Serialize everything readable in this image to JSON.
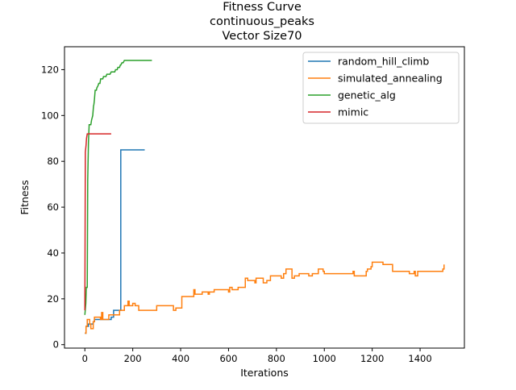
{
  "chart_data": {
    "type": "line",
    "title": [
      "Fitness Curve",
      "continuous_peaks",
      "Vector Size70"
    ],
    "xlabel": "Iterations",
    "ylabel": "Fitness",
    "xlim": [
      -85,
      1585
    ],
    "ylim": [
      -1.5,
      130
    ],
    "xticks": [
      0,
      200,
      400,
      600,
      800,
      1000,
      1200,
      1400
    ],
    "yticks": [
      0,
      20,
      40,
      60,
      80,
      100,
      120
    ],
    "grid": false,
    "legend": "upper right",
    "series": [
      {
        "name": "random_hill_climb",
        "color": "#1f77b4",
        "points": [
          [
            0,
            5
          ],
          [
            5,
            5
          ],
          [
            5,
            8
          ],
          [
            15,
            8
          ],
          [
            15,
            9
          ],
          [
            35,
            9
          ],
          [
            35,
            10
          ],
          [
            40,
            10
          ],
          [
            40,
            11
          ],
          [
            110,
            11
          ],
          [
            110,
            12
          ],
          [
            120,
            12
          ],
          [
            120,
            15
          ],
          [
            150,
            15
          ],
          [
            150,
            85
          ],
          [
            250,
            85
          ]
        ]
      },
      {
        "name": "simulated_annealing",
        "color": "#ff7f0e",
        "points": [
          [
            0,
            5
          ],
          [
            5,
            5
          ],
          [
            5,
            8
          ],
          [
            10,
            8
          ],
          [
            10,
            11
          ],
          [
            20,
            11
          ],
          [
            20,
            9
          ],
          [
            25,
            9
          ],
          [
            25,
            7
          ],
          [
            35,
            7
          ],
          [
            35,
            10
          ],
          [
            40,
            10
          ],
          [
            40,
            12
          ],
          [
            65,
            12
          ],
          [
            65,
            11
          ],
          [
            70,
            11
          ],
          [
            70,
            14
          ],
          [
            75,
            14
          ],
          [
            75,
            11
          ],
          [
            100,
            11
          ],
          [
            100,
            13
          ],
          [
            145,
            13
          ],
          [
            145,
            15
          ],
          [
            165,
            15
          ],
          [
            165,
            17
          ],
          [
            180,
            17
          ],
          [
            180,
            19
          ],
          [
            185,
            19
          ],
          [
            185,
            17
          ],
          [
            200,
            17
          ],
          [
            200,
            18
          ],
          [
            210,
            18
          ],
          [
            210,
            17
          ],
          [
            225,
            17
          ],
          [
            225,
            15
          ],
          [
            300,
            15
          ],
          [
            300,
            17
          ],
          [
            370,
            17
          ],
          [
            370,
            15
          ],
          [
            380,
            15
          ],
          [
            380,
            16
          ],
          [
            405,
            16
          ],
          [
            405,
            21
          ],
          [
            455,
            21
          ],
          [
            455,
            24
          ],
          [
            460,
            24
          ],
          [
            460,
            22
          ],
          [
            490,
            22
          ],
          [
            490,
            23
          ],
          [
            515,
            23
          ],
          [
            515,
            22
          ],
          [
            520,
            22
          ],
          [
            520,
            23
          ],
          [
            540,
            23
          ],
          [
            540,
            24
          ],
          [
            600,
            24
          ],
          [
            600,
            23
          ],
          [
            605,
            23
          ],
          [
            605,
            25
          ],
          [
            615,
            25
          ],
          [
            615,
            24
          ],
          [
            640,
            24
          ],
          [
            640,
            25
          ],
          [
            670,
            25
          ],
          [
            670,
            29
          ],
          [
            680,
            29
          ],
          [
            680,
            28
          ],
          [
            710,
            28
          ],
          [
            710,
            27
          ],
          [
            715,
            27
          ],
          [
            715,
            29
          ],
          [
            745,
            29
          ],
          [
            745,
            27
          ],
          [
            760,
            27
          ],
          [
            760,
            28
          ],
          [
            775,
            28
          ],
          [
            775,
            30
          ],
          [
            820,
            30
          ],
          [
            820,
            29
          ],
          [
            830,
            29
          ],
          [
            830,
            31
          ],
          [
            840,
            31
          ],
          [
            840,
            33
          ],
          [
            865,
            33
          ],
          [
            865,
            29
          ],
          [
            875,
            29
          ],
          [
            875,
            30
          ],
          [
            895,
            30
          ],
          [
            895,
            31
          ],
          [
            935,
            31
          ],
          [
            935,
            30
          ],
          [
            950,
            30
          ],
          [
            950,
            31
          ],
          [
            975,
            31
          ],
          [
            975,
            33
          ],
          [
            995,
            33
          ],
          [
            995,
            32
          ],
          [
            1000,
            32
          ],
          [
            1000,
            31
          ],
          [
            1120,
            31
          ],
          [
            1120,
            32
          ],
          [
            1125,
            32
          ],
          [
            1125,
            30
          ],
          [
            1175,
            30
          ],
          [
            1175,
            32
          ],
          [
            1180,
            32
          ],
          [
            1180,
            33
          ],
          [
            1195,
            33
          ],
          [
            1195,
            34
          ],
          [
            1200,
            34
          ],
          [
            1200,
            36
          ],
          [
            1245,
            36
          ],
          [
            1245,
            35
          ],
          [
            1285,
            35
          ],
          [
            1285,
            32
          ],
          [
            1355,
            32
          ],
          [
            1355,
            31
          ],
          [
            1375,
            31
          ],
          [
            1375,
            32
          ],
          [
            1380,
            32
          ],
          [
            1380,
            30
          ],
          [
            1390,
            30
          ],
          [
            1390,
            32
          ],
          [
            1495,
            32
          ],
          [
            1495,
            33
          ],
          [
            1500,
            33
          ],
          [
            1500,
            35
          ]
        ]
      },
      {
        "name": "genetic_alg",
        "color": "#2ca02c",
        "points": [
          [
            0,
            13
          ],
          [
            4,
            18
          ],
          [
            6,
            25
          ],
          [
            10,
            25
          ],
          [
            12,
            72
          ],
          [
            15,
            88
          ],
          [
            18,
            96
          ],
          [
            25,
            96
          ],
          [
            28,
            98
          ],
          [
            33,
            100
          ],
          [
            36,
            104
          ],
          [
            38,
            105
          ],
          [
            40,
            107
          ],
          [
            43,
            111
          ],
          [
            48,
            111
          ],
          [
            50,
            112
          ],
          [
            55,
            113
          ],
          [
            58,
            114
          ],
          [
            63,
            114
          ],
          [
            66,
            116
          ],
          [
            75,
            116
          ],
          [
            78,
            117
          ],
          [
            88,
            117
          ],
          [
            92,
            118
          ],
          [
            105,
            118
          ],
          [
            110,
            119
          ],
          [
            125,
            119
          ],
          [
            128,
            120
          ],
          [
            135,
            120
          ],
          [
            138,
            121
          ],
          [
            145,
            121
          ],
          [
            148,
            122
          ],
          [
            150,
            122
          ],
          [
            155,
            123
          ],
          [
            160,
            123
          ],
          [
            165,
            124
          ],
          [
            280,
            124
          ]
        ]
      },
      {
        "name": "mimic",
        "color": "#d62728",
        "points": [
          [
            0,
            15
          ],
          [
            2,
            84
          ],
          [
            5,
            87
          ],
          [
            7,
            90
          ],
          [
            10,
            92
          ],
          [
            110,
            92
          ]
        ]
      }
    ]
  }
}
